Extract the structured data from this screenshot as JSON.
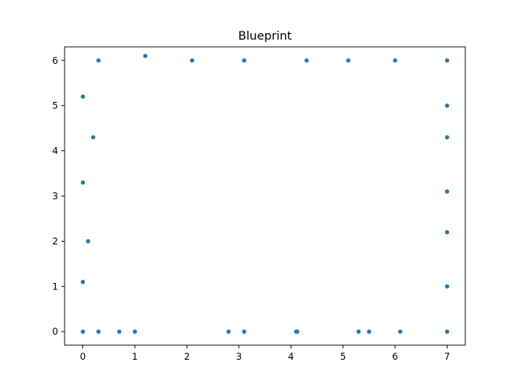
{
  "chart_data": {
    "type": "scatter",
    "title": "Blueprint",
    "xlabel": "",
    "ylabel": "",
    "xlim": [
      -0.35,
      7.35
    ],
    "ylim": [
      -0.3,
      6.3
    ],
    "xticks": [
      0,
      1,
      2,
      3,
      4,
      5,
      6,
      7
    ],
    "yticks": [
      0,
      1,
      2,
      3,
      4,
      5,
      6
    ],
    "grid": false,
    "marker_color": "#1f77b4",
    "series": [
      {
        "points": [
          {
            "x": 0,
            "y": 0
          },
          {
            "x": 0.3,
            "y": 0
          },
          {
            "x": 0.7,
            "y": 0
          },
          {
            "x": 1.0,
            "y": 0
          },
          {
            "x": 2.8,
            "y": 0
          },
          {
            "x": 3.1,
            "y": 0
          },
          {
            "x": 4.1,
            "y": 0
          },
          {
            "x": 4.12,
            "y": 0
          },
          {
            "x": 5.3,
            "y": 0
          },
          {
            "x": 5.5,
            "y": 0
          },
          {
            "x": 6.1,
            "y": 0
          },
          {
            "x": 7.0,
            "y": 0
          },
          {
            "x": 7.0,
            "y": 1.0
          },
          {
            "x": 7.0,
            "y": 2.2
          },
          {
            "x": 7.0,
            "y": 3.1
          },
          {
            "x": 7.0,
            "y": 4.3
          },
          {
            "x": 7.0,
            "y": 5.0
          },
          {
            "x": 7.0,
            "y": 6.0
          },
          {
            "x": 6.0,
            "y": 6.0
          },
          {
            "x": 5.1,
            "y": 6.0
          },
          {
            "x": 4.3,
            "y": 6.0
          },
          {
            "x": 3.1,
            "y": 6.0
          },
          {
            "x": 2.1,
            "y": 6.0
          },
          {
            "x": 1.2,
            "y": 6.1
          },
          {
            "x": 0.3,
            "y": 6.0
          },
          {
            "x": 0,
            "y": 5.2
          },
          {
            "x": 0.2,
            "y": 4.3
          },
          {
            "x": 0,
            "y": 3.3
          },
          {
            "x": 0.1,
            "y": 2.0
          },
          {
            "x": 0,
            "y": 1.1
          }
        ]
      }
    ]
  }
}
